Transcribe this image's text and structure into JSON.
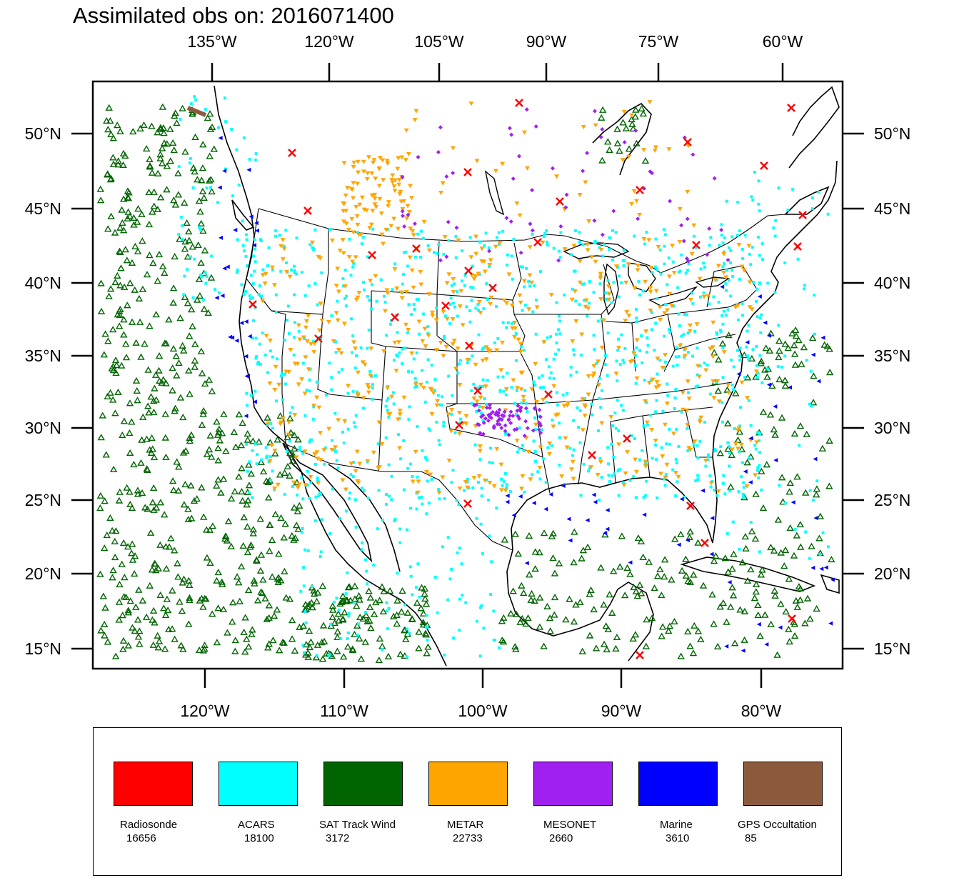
{
  "title": "Assimilated obs on: 2016071400",
  "map": {
    "projection": "Lambert conformal (CONUS)",
    "region": "North America, Gulf of Mexico and adjacent Pacific/Atlantic",
    "grid_lines": false,
    "top_lon_labels": [
      "135°W",
      "120°W",
      "105°W",
      "90°W",
      "75°W",
      "60°W"
    ],
    "bottom_lon_labels": [
      "120°W",
      "110°W",
      "100°W",
      "90°W",
      "80°W"
    ],
    "lat_labels": [
      "50°N",
      "45°N",
      "40°N",
      "35°N",
      "30°N",
      "25°N",
      "20°N",
      "15°N"
    ]
  },
  "legend": {
    "placement": "bottom",
    "items": [
      {
        "name": "Radiosonde",
        "count": "16656",
        "color": "#ff0000",
        "symbol": "x"
      },
      {
        "name": "ACARS",
        "count": "18100",
        "color": "#00ffff",
        "symbol": "square"
      },
      {
        "name": "SAT Track Wind",
        "count": "3172",
        "color": "#006400",
        "symbol": "triangle-up"
      },
      {
        "name": "METAR",
        "count": "22733",
        "color": "#ffa500",
        "symbol": "triangle-down"
      },
      {
        "name": "MESONET",
        "count": "2660",
        "color": "#a020f0",
        "symbol": "diamond"
      },
      {
        "name": "Marine",
        "count": "3610",
        "color": "#0000ff",
        "symbol": "triangle-left"
      },
      {
        "name": "GPS Occultation",
        "count": "85",
        "color": "#8b5a3c",
        "symbol": "segment"
      }
    ]
  },
  "chart_data": {
    "type": "scatter",
    "title": "Assimilated obs on: 2016071400",
    "series": [
      {
        "name": "Radiosonde",
        "count": 16656
      },
      {
        "name": "ACARS",
        "count": 18100
      },
      {
        "name": "SAT Track Wind",
        "count": 3172
      },
      {
        "name": "METAR",
        "count": 22733
      },
      {
        "name": "MESONET",
        "count": 2660
      },
      {
        "name": "Marine",
        "count": 3610
      },
      {
        "name": "GPS Occultation",
        "count": 85
      }
    ]
  }
}
